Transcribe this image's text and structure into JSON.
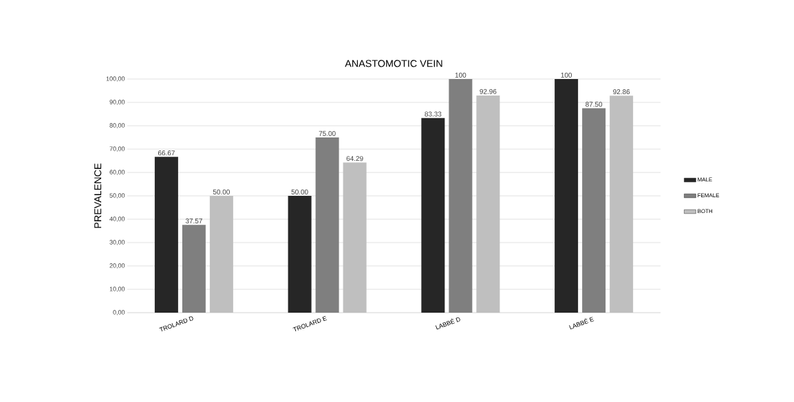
{
  "chart_data": {
    "type": "bar",
    "title": "ANASTOMOTIC VEIN",
    "ylabel": "PREVALENCE",
    "categories": [
      "TROLARD D",
      "TROLARD E",
      "LABBÉ D",
      "LABBÉ E"
    ],
    "series": [
      {
        "name": "MALE",
        "color": "#262626",
        "values": [
          66.67,
          50,
          83.33,
          100
        ],
        "value_labels": [
          "66.67",
          "50.00",
          "83.33",
          "100"
        ]
      },
      {
        "name": "FEMALE",
        "color": "#7f7f7f",
        "values": [
          37.57,
          75,
          100,
          87.5
        ],
        "value_labels": [
          "37.57",
          "75.00",
          "100",
          "87.50"
        ]
      },
      {
        "name": "BOTH",
        "color": "#bfbfbf",
        "values": [
          50,
          64.29,
          92.96,
          92.86
        ],
        "value_labels": [
          "50.00",
          "64.29",
          "92.96",
          "92.86"
        ]
      }
    ],
    "ylim": [
      0,
      100
    ],
    "yticks": [
      {
        "value": 0,
        "label": "0,00"
      },
      {
        "value": 10,
        "label": "10,00"
      },
      {
        "value": 20,
        "label": "20,00"
      },
      {
        "value": 30,
        "label": "30,00"
      },
      {
        "value": 40,
        "label": "40,00"
      },
      {
        "value": 50,
        "label": "50,00"
      },
      {
        "value": 60,
        "label": "60,00"
      },
      {
        "value": 70,
        "label": "70,00"
      },
      {
        "value": 80,
        "label": "80,00"
      },
      {
        "value": 90,
        "label": "90,00"
      },
      {
        "value": 100,
        "label": "100,00"
      }
    ],
    "grid": "y",
    "legend": "right"
  }
}
